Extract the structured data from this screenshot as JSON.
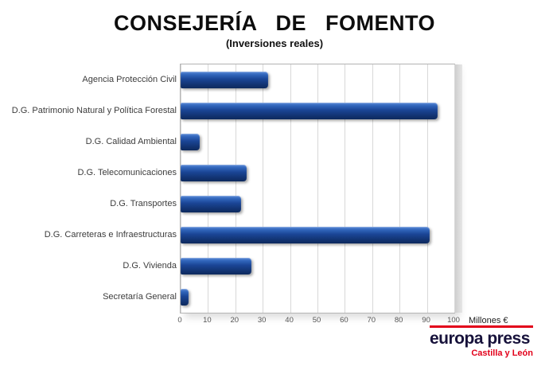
{
  "title": "CONSEJERÍA DE FOMENTO",
  "subtitle": "(Inversiones reales)",
  "chart_data": {
    "type": "bar",
    "orientation": "horizontal",
    "title": "CONSEJERÍA DE FOMENTO",
    "subtitle": "(Inversiones reales)",
    "categories": [
      "Agencia Protección Civil",
      "D.G. Patrimonio Natural y Política Forestal",
      "D.G. Calidad Ambiental",
      "D.G. Telecomunicaciones",
      "D.G. Transportes",
      "D.G. Carreteras e Infraestructuras",
      "D.G. Vivienda",
      "Secretaría General"
    ],
    "values": [
      32,
      94,
      7,
      24,
      22,
      91,
      26,
      3
    ],
    "xlabel": "Millones €",
    "xlim": [
      0,
      100
    ],
    "xticks": [
      0,
      10,
      20,
      30,
      40,
      50,
      60,
      70,
      80,
      90,
      100
    ],
    "grid": true,
    "legend": false,
    "bar_color": "#1a4595"
  },
  "logo": {
    "name": "europa press",
    "region": "Castilla y León",
    "accent_color": "#e2001a",
    "name_color": "#17123b"
  }
}
